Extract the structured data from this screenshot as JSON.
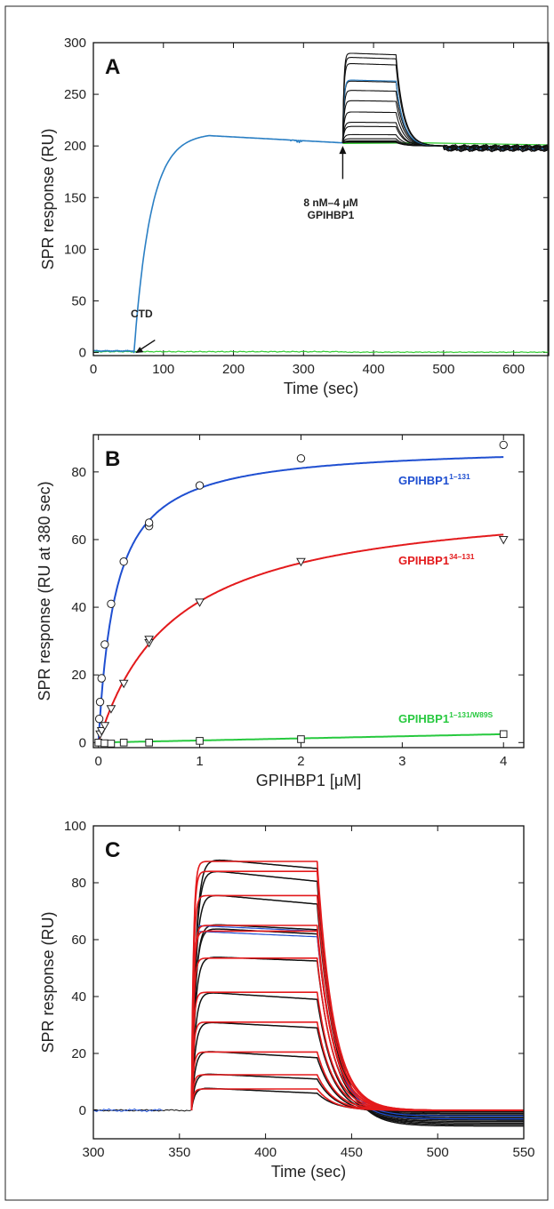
{
  "colors": {
    "blue": "#1f4fd1",
    "red": "#e31a1c",
    "green": "#27c93f",
    "black": "#111111",
    "traceBlue": "#2a7fc4",
    "traceGreen": "#33cc33"
  },
  "chart_data": [
    {
      "panel": "A",
      "type": "line",
      "xlabel": "Time (sec)",
      "ylabel": "SPR response (RU)",
      "xlim": [
        0,
        650
      ],
      "ylim": [
        -3,
        300
      ],
      "xticks": [
        0,
        100,
        200,
        300,
        400,
        500,
        600
      ],
      "yticks": [
        0,
        50,
        100,
        150,
        200,
        250,
        300
      ],
      "annotations": {
        "ctd": "CTD",
        "inject_line1": "8 nM–4 μM",
        "inject_line2": "GPIHBP1"
      },
      "capture": {
        "start": 58,
        "plateau_time": 165,
        "plateau_value": 210,
        "end_value": 203
      },
      "injection": {
        "start": 356,
        "end": 432
      },
      "plateaus": [
        203.5,
        204,
        205,
        207,
        211,
        219,
        223,
        233,
        244,
        254,
        263,
        264,
        280,
        286,
        290
      ]
    },
    {
      "panel": "B",
      "type": "scatter",
      "xlabel": "GPIHBP1 [μM]",
      "ylabel": "SPR response (RU at 380 sec)",
      "xlim": [
        -0.05,
        4.2
      ],
      "ylim": [
        -1.5,
        91
      ],
      "xticks": [
        0,
        1,
        2,
        3,
        4
      ],
      "yticks": [
        0,
        20,
        40,
        60,
        80
      ],
      "series": [
        {
          "base": "GPIHBP1",
          "sup": "1–131",
          "marker": "circle",
          "x": [
            0.008,
            0.016,
            0.031,
            0.0625,
            0.125,
            0.25,
            0.5,
            0.5,
            1,
            2,
            4
          ],
          "y": [
            7,
            12,
            19,
            29,
            41,
            53.5,
            64,
            65,
            76,
            84,
            88
          ],
          "fit": {
            "bmax": 88,
            "kd": 0.17
          }
        },
        {
          "base": "GPIHBP1",
          "sup": "34–131",
          "marker": "triangle",
          "x": [
            0.016,
            0.031,
            0.0625,
            0.125,
            0.25,
            0.5,
            0.5,
            1,
            2,
            4
          ],
          "y": [
            2.5,
            3.5,
            5,
            10,
            17.5,
            29.5,
            30.5,
            41.5,
            53.5,
            60
          ],
          "fit": {
            "bmax": 73,
            "kd": 0.75
          }
        },
        {
          "base": "GPIHBP1",
          "sup": "1–131/W89S",
          "marker": "square",
          "x": [
            0,
            0.06,
            0.125,
            0.25,
            0.5,
            1,
            2,
            4
          ],
          "y": [
            0,
            -0.2,
            -0.3,
            0,
            0,
            0.5,
            1,
            2.5
          ],
          "fit": {
            "slope": 0.62
          }
        }
      ]
    },
    {
      "panel": "C",
      "type": "line",
      "xlabel": "Time (sec)",
      "ylabel": "SPR response (RU)",
      "xlim": [
        300,
        550
      ],
      "ylim": [
        -10,
        100
      ],
      "xticks": [
        300,
        350,
        400,
        450,
        500,
        550
      ],
      "yticks": [
        0,
        20,
        40,
        60,
        80,
        100
      ],
      "injection": {
        "start": 357,
        "end": 430
      },
      "fit_plateaus": [
        7.5,
        12.5,
        20.5,
        31,
        41.5,
        53.5,
        63,
        65,
        75.5,
        84,
        87.5
      ],
      "data_peaks": [
        7.8,
        12.8,
        20.8,
        31,
        41.5,
        54,
        64,
        65.5,
        76,
        84.5,
        88.5
      ],
      "data_ends": [
        6,
        11,
        18.5,
        29,
        39,
        52.5,
        62,
        63.5,
        72.5,
        80.5,
        85
      ]
    }
  ]
}
